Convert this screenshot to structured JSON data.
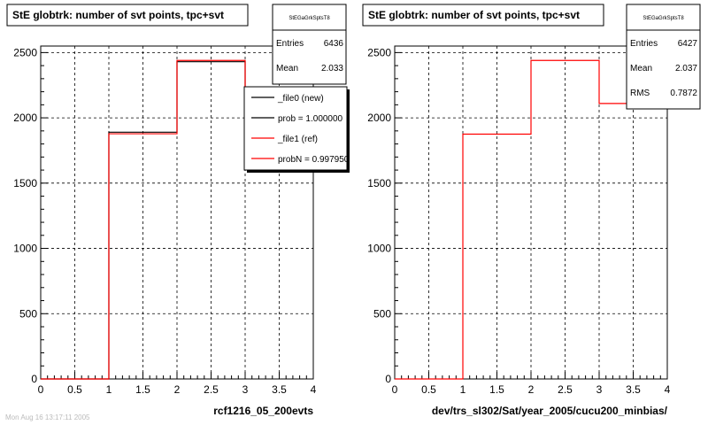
{
  "chart_data": [
    {
      "type": "histogram",
      "title": "StE globtrk: number of svt points, tpc+svt",
      "xlabel": "rcf1216_05_200evts",
      "xlim": [
        0,
        4
      ],
      "ylim": [
        0,
        2550
      ],
      "xticks": [
        "0",
        "0.5",
        "1",
        "1.5",
        "2",
        "2.5",
        "3",
        "3.5",
        "4"
      ],
      "yticks": [
        "0",
        "500",
        "1000",
        "1500",
        "2000",
        "2500"
      ],
      "grid": true,
      "bin_edges": [
        0,
        1,
        2,
        3,
        4
      ],
      "series": [
        {
          "name": "_file0 (new)",
          "color": "#000000",
          "values": [
            0,
            1890,
            2430,
            2080
          ]
        },
        {
          "name": "_file1 (ref)",
          "color": "#ff0000",
          "values": [
            0,
            1878,
            2440,
            2100
          ]
        }
      ],
      "stats": {
        "name": "StEGaGrkSptsT8",
        "entries_label": "Entries",
        "entries": "6436",
        "mean_label": "Mean",
        "mean": "2.033"
      },
      "legend": {
        "placement": "top-right",
        "entries": [
          "_file0 (new)",
          "prob = 1.000000",
          "_file1 (ref)",
          "probN = 0.997950"
        ]
      },
      "footer": "Mon Aug 16 13:17:11 2005"
    },
    {
      "type": "histogram",
      "title": "StE globtrk: number of svt points, tpc+svt",
      "xlabel": "dev/trs_sl302/Sat/year_2005/cucu200_minbias/",
      "xlim": [
        0,
        4
      ],
      "ylim": [
        0,
        2550
      ],
      "xticks": [
        "0",
        "0.5",
        "1",
        "1.5",
        "2",
        "2.5",
        "3",
        "3.5",
        "4"
      ],
      "yticks": [
        "0",
        "500",
        "1000",
        "1500",
        "2000",
        "2500"
      ],
      "grid": true,
      "bin_edges": [
        0,
        1,
        2,
        3,
        4
      ],
      "series": [
        {
          "color": "#ff0000",
          "values": [
            0,
            1875,
            2440,
            2110
          ]
        }
      ],
      "stats": {
        "name": "StEGaGrkSptsT8",
        "entries_label": "Entries",
        "entries": "6427",
        "mean_label": "Mean",
        "mean": "2.037",
        "rms_label": "RMS",
        "rms": "0.7872"
      }
    }
  ]
}
